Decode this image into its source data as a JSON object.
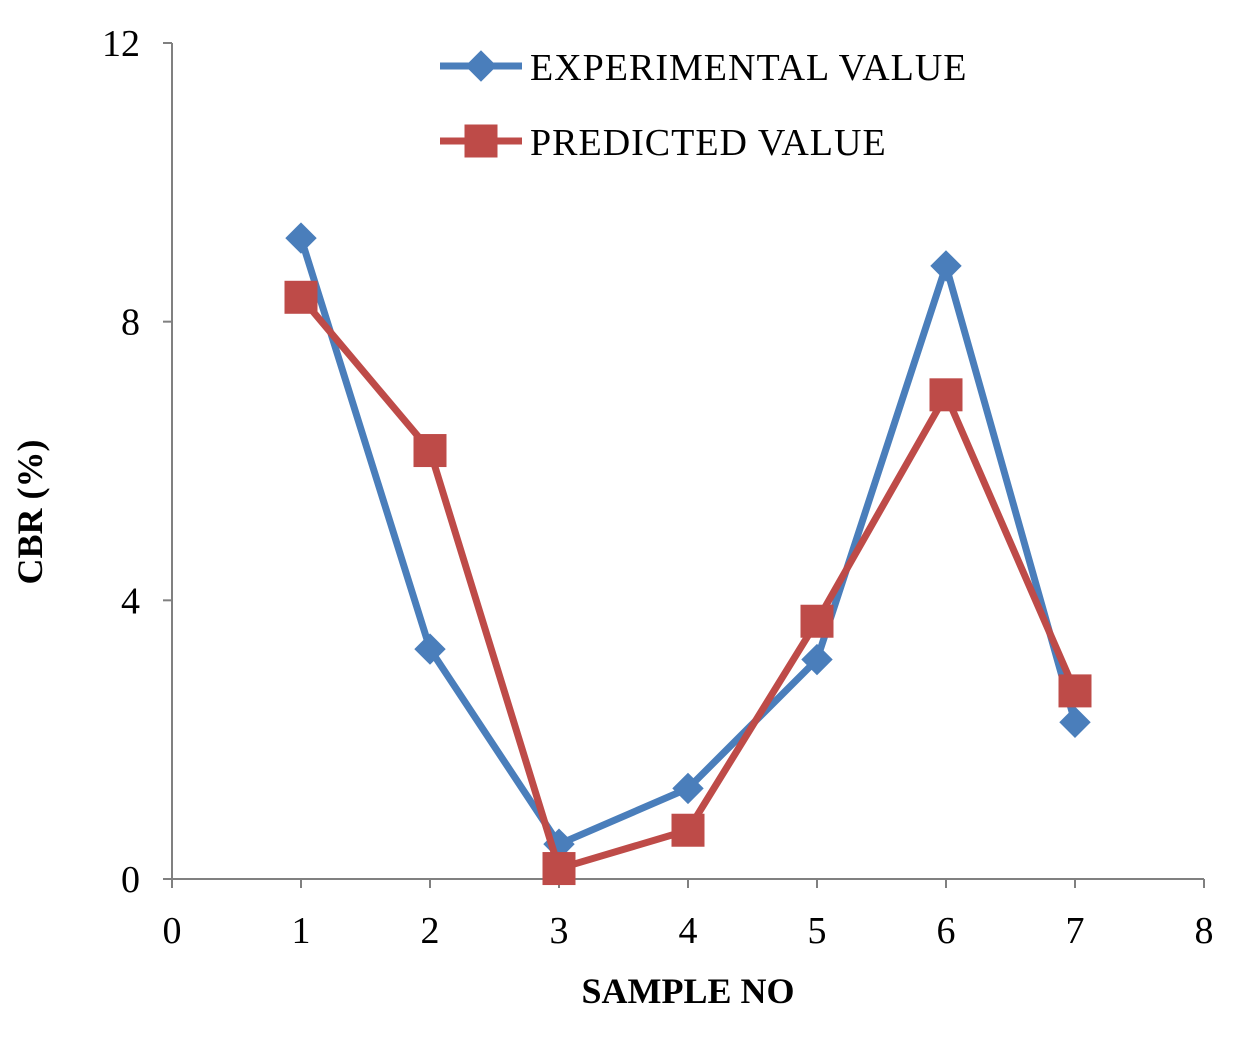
{
  "chart_data": {
    "type": "line",
    "title": "",
    "xlabel": "SAMPLE NO",
    "ylabel": "CBR (%)",
    "xlim": [
      0,
      8
    ],
    "ylim": [
      0,
      12
    ],
    "xticks": [
      0,
      1,
      2,
      3,
      4,
      5,
      6,
      7,
      8
    ],
    "yticks": [
      0,
      4,
      8,
      12
    ],
    "x": [
      1,
      2,
      3,
      4,
      5,
      6,
      7
    ],
    "grid": false,
    "legend_position": "top",
    "series": [
      {
        "name": "EXPERIMENTAL VALUE",
        "color": "#4a7ebb",
        "marker": "diamond",
        "values": [
          9.2,
          3.3,
          0.5,
          1.3,
          3.15,
          8.8,
          2.25
        ]
      },
      {
        "name": "PREDICTED VALUE",
        "color": "#be4b48",
        "marker": "square",
        "values": [
          8.35,
          6.15,
          0.15,
          0.7,
          3.7,
          6.95,
          2.7
        ]
      }
    ]
  }
}
